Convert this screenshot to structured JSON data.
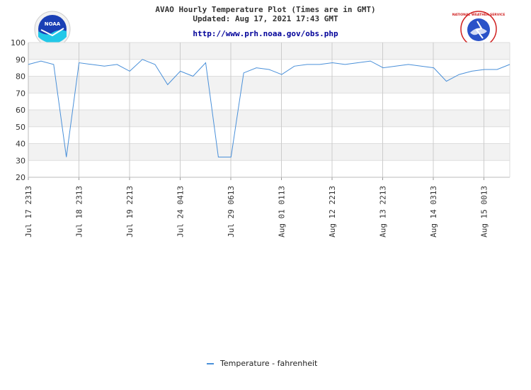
{
  "header": {
    "title_line1": "AVAO Hourly Temperature Plot (Times are in GMT)",
    "title_line2": "Updated: Aug 17, 2021 17:43 GMT",
    "url": "http://www.prh.noaa.gov/obs.php"
  },
  "logos": {
    "left": "NOAA",
    "right": "NATIONAL WEATHER SERVICE"
  },
  "chart_data": {
    "type": "line",
    "ylim": [
      20,
      100
    ],
    "yticks": [
      20,
      30,
      40,
      50,
      60,
      70,
      80,
      90,
      100
    ],
    "grid": true,
    "legend_placement": "bottom-center",
    "x_tick_labels": [
      "Jul 17 2313",
      "Jul 18 2313",
      "Jul 19 2213",
      "Jul 24 0413",
      "Jul 29 0613",
      "Aug 01 0113",
      "Aug 12 2213",
      "Aug 13 2213",
      "Aug 14 0313",
      "Aug 15 0013"
    ],
    "series": [
      {
        "name": "Temperature - fahrenheit",
        "color": "#4a90d9",
        "values": [
          87,
          89,
          87,
          32,
          88,
          87,
          86,
          87,
          83,
          90,
          87,
          75,
          83,
          80,
          88,
          32,
          32,
          82,
          85,
          84,
          81,
          86,
          87,
          87,
          88,
          87,
          88,
          89,
          85,
          86,
          87,
          86,
          85,
          77,
          81,
          83,
          84,
          84,
          87
        ]
      }
    ]
  }
}
